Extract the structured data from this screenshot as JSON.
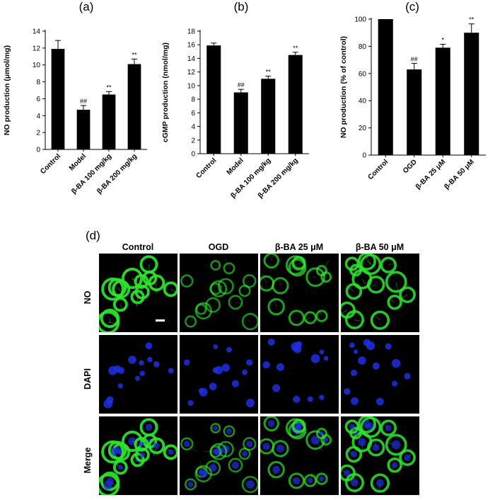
{
  "colors": {
    "bar": "#000000",
    "nucleus": "#1f2fe0",
    "no_stain": "#2ee42e",
    "background": "#000000"
  },
  "chart_data": [
    {
      "panel": "(a)",
      "type": "bar",
      "categories": [
        "Control",
        "Model",
        "β-BA 100 mg/kg",
        "β-BA 200 mg/kg"
      ],
      "values": [
        11.9,
        4.7,
        6.5,
        10.1
      ],
      "errors": [
        1.0,
        0.5,
        0.35,
        0.6
      ],
      "annotations": [
        "",
        "##",
        "**",
        "**"
      ],
      "ylabel": "NO production (μmol/mg)",
      "ylim": [
        0,
        14
      ],
      "yticks": [
        0,
        2,
        4,
        6,
        8,
        10,
        12,
        14
      ],
      "grid": false
    },
    {
      "panel": "(b)",
      "type": "bar",
      "categories": [
        "Control",
        "Model",
        "β-BA 100 mg/kg",
        "β-BA 200 mg/kg"
      ],
      "values": [
        15.9,
        9.0,
        11.0,
        14.5
      ],
      "errors": [
        0.35,
        0.45,
        0.4,
        0.4
      ],
      "annotations": [
        "",
        "##",
        "**",
        "**"
      ],
      "ylabel": "cGMP production (nmol/mg)",
      "ylim": [
        0,
        18
      ],
      "yticks": [
        0,
        2,
        4,
        6,
        8,
        10,
        12,
        14,
        16,
        18
      ],
      "grid": false
    },
    {
      "panel": "(c)",
      "type": "bar",
      "categories": [
        "Control",
        "OGD",
        "β-BA 25 μM",
        "β-BA 50 μM"
      ],
      "values": [
        100,
        63,
        79,
        90
      ],
      "errors": [
        0,
        4.5,
        2.5,
        6.5
      ],
      "annotations": [
        "",
        "##",
        "*",
        "**"
      ],
      "ylabel": "NO production (% of control)",
      "ylim": [
        0,
        100
      ],
      "yticks": [
        0,
        20,
        40,
        60,
        80,
        100
      ],
      "grid": false
    }
  ],
  "micrographs": {
    "panel": "(d)",
    "columns": [
      "Control",
      "OGD",
      "β-BA 25 μM",
      "β-BA 50 μM"
    ],
    "rows": [
      "NO",
      "DAPI",
      "Merge"
    ],
    "no_intensity": [
      0.95,
      0.45,
      0.6,
      0.85
    ]
  }
}
